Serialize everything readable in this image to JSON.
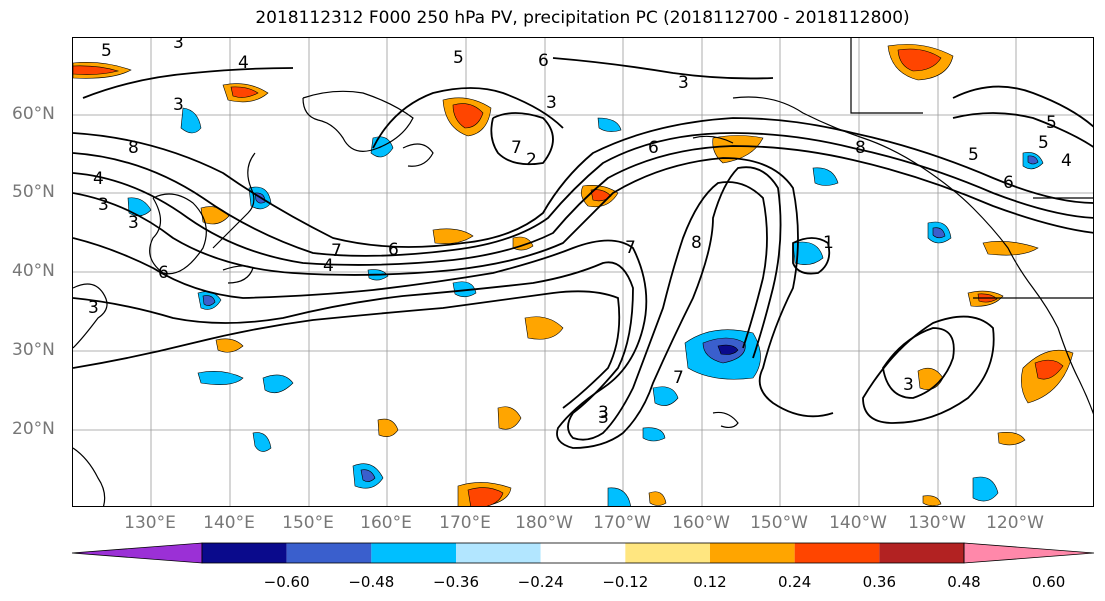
{
  "title": "2018112312 F000 250 hPa PV, precipitation PC (2018112700 - 2018112800)",
  "lat_labels": [
    "60°N",
    "50°N",
    "40°N",
    "30°N",
    "20°N"
  ],
  "lon_labels": [
    "130°E",
    "140°E",
    "150°E",
    "160°E",
    "170°E",
    "180°W",
    "170°W",
    "160°W",
    "150°W",
    "140°W",
    "130°W",
    "120°W"
  ],
  "contour_labels": [
    "5",
    "3",
    "4",
    "5",
    "6",
    "3",
    "2",
    "7",
    "3",
    "6",
    "8",
    "4",
    "3",
    "3",
    "6",
    "4",
    "7",
    "6",
    "8",
    "7",
    "8",
    "5",
    "4",
    "6",
    "5",
    "3",
    "3",
    "1",
    "3",
    "3",
    "3",
    "5",
    "7"
  ],
  "colorbar": {
    "colors": [
      "#9b30d6",
      "#0a0a8c",
      "#3a5fcd",
      "#00bfff",
      "#b2e6ff",
      "#ffffff",
      "#ffe680",
      "#ffa500",
      "#ff4500",
      "#b22222",
      "#ff88aa"
    ],
    "ticks": [
      "−0.60",
      "−0.48",
      "−0.36",
      "−0.24",
      "−0.12",
      "0.12",
      "0.24",
      "0.36",
      "0.48",
      "0.60"
    ]
  },
  "colors": {
    "strong_negative": "#0a0a8c",
    "negative": "#3a5fcd",
    "weak_negative": "#00bfff",
    "weak_positive": "#ffa500",
    "positive": "#ff4500",
    "land_outline": "#000000",
    "grid": "#999999"
  }
}
